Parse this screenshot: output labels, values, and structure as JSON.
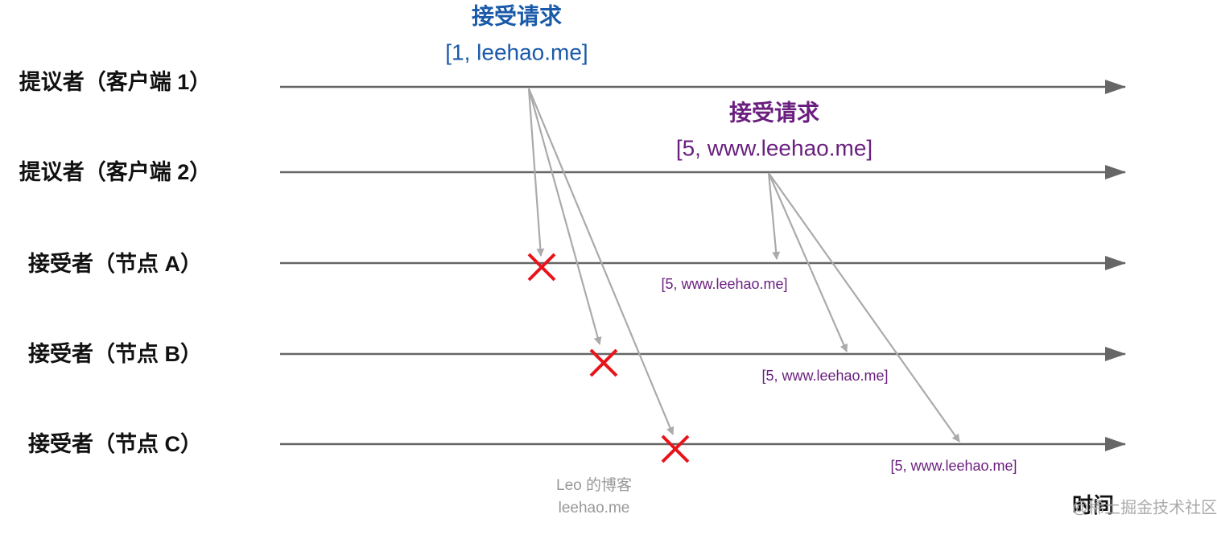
{
  "lanes": [
    "提议者（客户端 1）",
    "提议者（客户端 2）",
    "接受者（节点 A）",
    "接受者（节点 B）",
    "接受者（节点 C）"
  ],
  "requests": [
    {
      "title": "接受请求",
      "proposal": "[1, leehao.me]"
    },
    {
      "title": "接受请求",
      "proposal": "[5, www.leehao.me]"
    }
  ],
  "accepted": [
    "[5, www.leehao.me]",
    "[5, www.leehao.me]",
    "[5, www.leehao.me]"
  ],
  "watermark": [
    "Leo 的博客",
    "leehao.me"
  ],
  "time_label": "时间",
  "site_watermark": "@稀土掘金技术社区"
}
